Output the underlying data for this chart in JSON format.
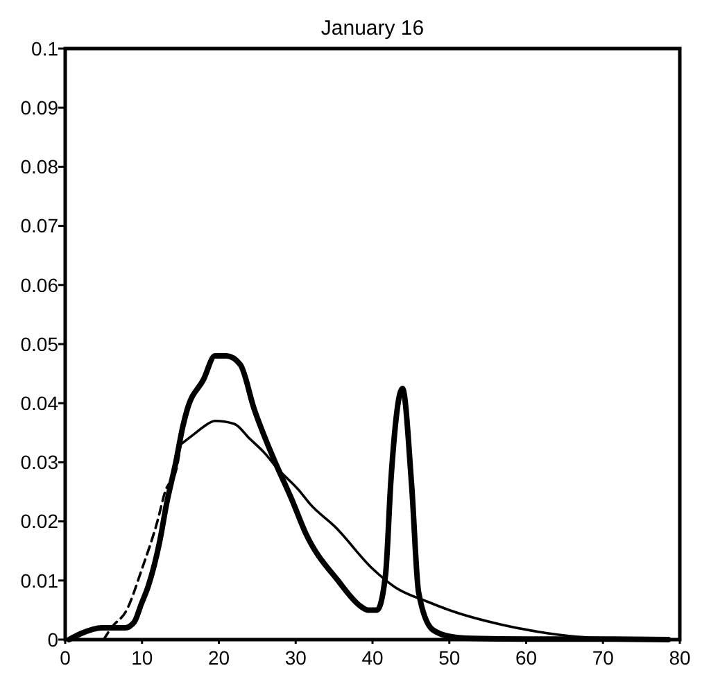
{
  "chart_data": {
    "type": "line",
    "title": "January 16",
    "xlim": [
      0,
      80
    ],
    "ylim": [
      0,
      0.1
    ],
    "xticks": [
      0,
      10,
      20,
      30,
      40,
      50,
      60,
      70,
      80
    ],
    "yticks": [
      0,
      0.01,
      0.02,
      0.03,
      0.04,
      0.05,
      0.06,
      0.07,
      0.08,
      0.09,
      0.1
    ],
    "marker": "none",
    "series": [
      {
        "color": "#000000",
        "line_style": "solid",
        "x": [
          0.5,
          2,
          4.8,
          7.8,
          9,
          9.9,
          10.8,
          12.3,
          13.2,
          14.4,
          15.3,
          15.9,
          18,
          19.5,
          21,
          22.8,
          24.6,
          27,
          29.5,
          31.3,
          35.5,
          38.5,
          39.4,
          40.6,
          41.7,
          42.4,
          43.9,
          45.1,
          46,
          47.8,
          50.2,
          53,
          60,
          70,
          78.5
        ],
        "values": [
          0,
          0.001,
          0.002,
          0.002,
          0.003,
          0.006,
          0.009,
          0.0166,
          0.023,
          0.03,
          0.036,
          0.039,
          0.044,
          0.048,
          0.048,
          0.0465,
          0.039,
          0.031,
          0.0237,
          0.018,
          0.01,
          0.0056,
          0.005,
          0.005,
          0.011,
          0.027,
          0.0425,
          0.026,
          0.008,
          0.0017,
          0.0005,
          0.0002,
          0.0001,
          0.0001,
          0
        ]
      },
      {
        "color": "#000000",
        "line_style": "dashed",
        "x": [
          5,
          6,
          8,
          10,
          12,
          13,
          14.5,
          15
        ],
        "values": [
          0,
          0.002,
          0.005,
          0.012,
          0.02,
          0.025,
          0.029,
          0.033
        ]
      },
      {
        "color": "#000000",
        "line_style": "solid",
        "x": [
          15,
          17,
          18,
          19.5,
          22,
          24,
          26,
          27.6,
          30.4,
          31.9,
          35.2,
          40,
          43,
          47.2,
          50.2,
          56.9,
          61.7,
          66.5,
          71.3,
          78
        ],
        "values": [
          0.033,
          0.035,
          0.036,
          0.037,
          0.0365,
          0.034,
          0.0315,
          0.029,
          0.0253,
          0.0229,
          0.019,
          0.012,
          0.0088,
          0.0064,
          0.0049,
          0.0025,
          0.0013,
          0.0005,
          0.0002,
          0
        ]
      }
    ]
  }
}
